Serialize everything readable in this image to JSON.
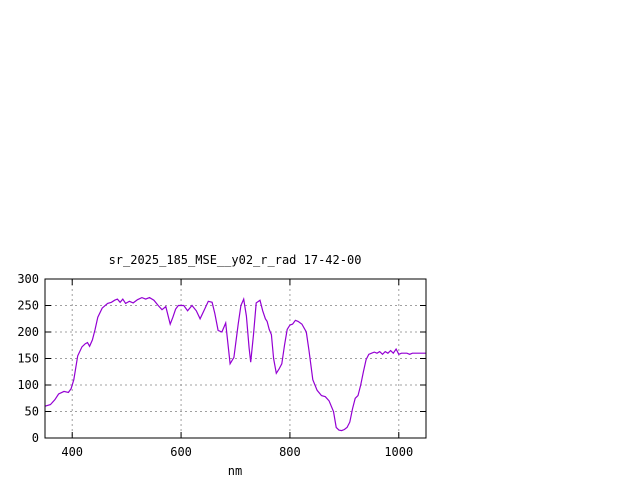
{
  "chart_data": {
    "type": "line",
    "title": "sr_2025_185_MSE__y02_r_rad 17-42-00",
    "xlabel": "nm",
    "ylabel": "",
    "xlim": [
      350,
      1050
    ],
    "ylim": [
      0,
      300
    ],
    "xticks": [
      400,
      600,
      800,
      1000
    ],
    "yticks": [
      0,
      50,
      100,
      150,
      200,
      250,
      300
    ],
    "grid": true,
    "series_color": "#9400d3",
    "series": [
      {
        "x": [
          350,
          360,
          368,
          375,
          385,
          393,
          398,
          403,
          410,
          418,
          424,
          428,
          432,
          437,
          442,
          447,
          455,
          465,
          472,
          478,
          483,
          488,
          493,
          498,
          505,
          512,
          520,
          528,
          535,
          542,
          550,
          558,
          565,
          572,
          580,
          585,
          590,
          595,
          600,
          605,
          612,
          620,
          628,
          635,
          642,
          650,
          657,
          662,
          668,
          675,
          682,
          690,
          697,
          705,
          710,
          715,
          720,
          725,
          728,
          733,
          738,
          745,
          750,
          755,
          758,
          762,
          766,
          770,
          775,
          780,
          785,
          790,
          795,
          800,
          805,
          810,
          815,
          822,
          830,
          835,
          842,
          850,
          858,
          865,
          872,
          880,
          885,
          890,
          895,
          900,
          905,
          910,
          915,
          920,
          925,
          930,
          935,
          940,
          945,
          950,
          955,
          960,
          965,
          970,
          975,
          980,
          985,
          990,
          995,
          1000,
          1005,
          1010,
          1015,
          1020,
          1025,
          1030,
          1035,
          1040,
          1045,
          1050
        ],
        "values": [
          60,
          63,
          72,
          83,
          88,
          86,
          93,
          110,
          155,
          172,
          178,
          180,
          173,
          185,
          205,
          228,
          245,
          254,
          256,
          260,
          262,
          256,
          262,
          254,
          258,
          255,
          261,
          265,
          262,
          265,
          260,
          250,
          242,
          248,
          215,
          228,
          243,
          250,
          250,
          250,
          240,
          250,
          240,
          225,
          240,
          258,
          256,
          235,
          203,
          200,
          217,
          140,
          152,
          215,
          250,
          262,
          230,
          170,
          143,
          195,
          255,
          260,
          240,
          225,
          220,
          205,
          195,
          150,
          122,
          130,
          140,
          175,
          205,
          213,
          215,
          222,
          220,
          215,
          200,
          165,
          110,
          90,
          80,
          78,
          70,
          50,
          20,
          15,
          14,
          16,
          20,
          30,
          55,
          75,
          80,
          100,
          125,
          148,
          158,
          160,
          162,
          160,
          163,
          158,
          163,
          160,
          165,
          160,
          168,
          158,
          160,
          160,
          160,
          158,
          160,
          160,
          160,
          160,
          160,
          160
        ]
      }
    ]
  }
}
